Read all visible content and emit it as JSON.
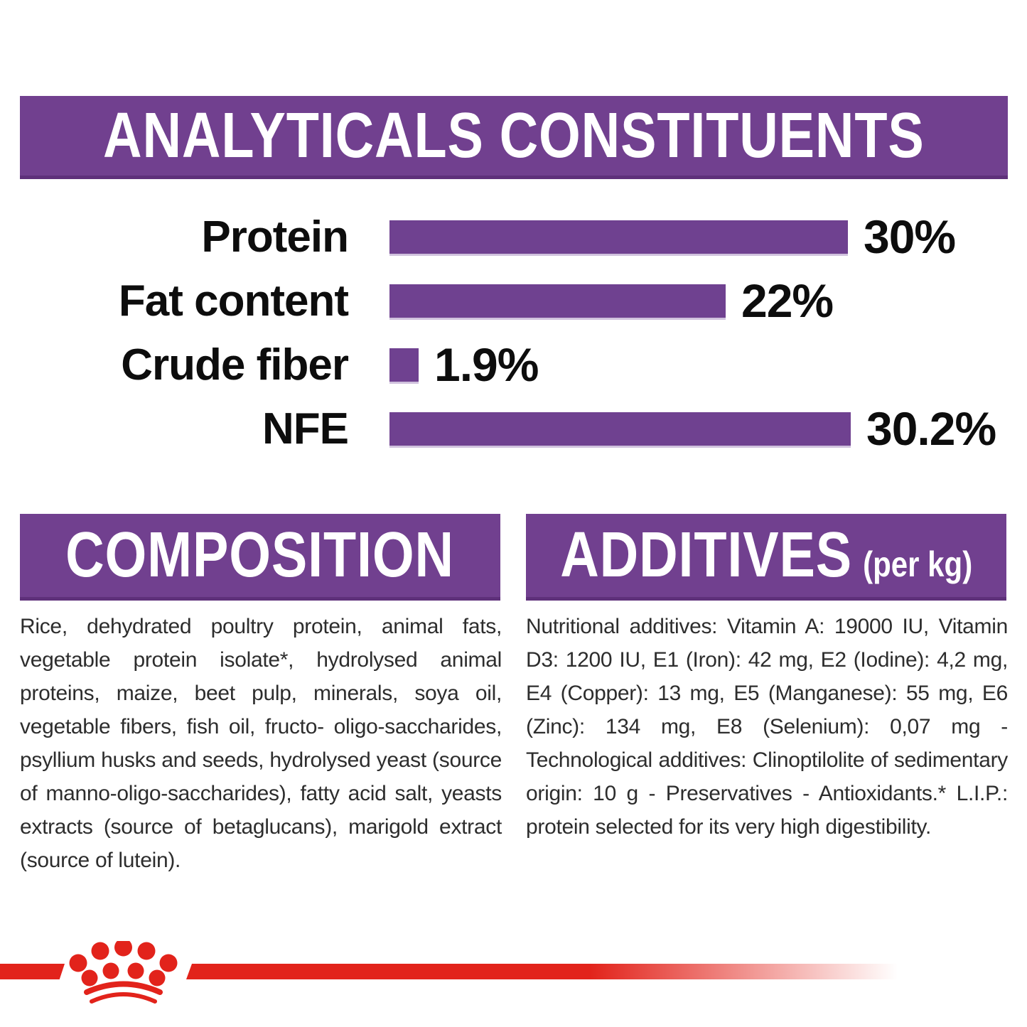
{
  "header": {
    "title": "ANALYTICALS CONSTITUENTS"
  },
  "chart_data": {
    "type": "bar",
    "orientation": "horizontal",
    "title": "ANALYTICALS CONSTITUENTS",
    "categories": [
      "Protein",
      "Fat content",
      "Crude fiber",
      "NFE"
    ],
    "values": [
      30,
      22,
      1.9,
      30.2
    ],
    "value_labels": [
      "30%",
      "22%",
      "1.9%",
      "30.2%"
    ],
    "unit": "%",
    "xlim": [
      0,
      31
    ],
    "grid": false,
    "legend": false,
    "bar_color": "#6F4190"
  },
  "composition": {
    "title": "COMPOSITION",
    "body": "Rice, dehydrated poultry protein, animal fats, vegetable protein isolate*, hydrolysed animal proteins, maize, beet pulp, minerals, soya oil, vegetable fibers, fish oil, fructo- oligo-saccharides, psyllium husks and seeds, hydrolysed yeast (source of manno-oligo-saccharides), fatty acid salt, yeasts extracts (source of betaglucans), marigold extract (source of lutein)."
  },
  "additives": {
    "title": "ADDITIVES",
    "unit": "(per kg)",
    "body": "Nutritional additives: Vitamin A: 19000 IU, Vitamin D3: 1200 IU, E1 (Iron): 42 mg, E2 (Iodine): 4,2 mg, E4 (Copper): 13 mg, E5 (Manganese): 55 mg, E6 (Zinc): 134 mg, E8 (Selenium): 0,07 mg - Technological additives: Clinoptilolite of sedimentary origin: 10 g - Preservatives - Antioxidants.* L.I.P.: protein selected for its very high digestibility."
  },
  "footer": {
    "logo": "royal-canin-crown"
  },
  "colors": {
    "banner_purple": "#71408F",
    "bar_purple": "#6F4190",
    "brand_red": "#E2231B",
    "body_text": "#2D2D2D",
    "background": "#FFFFFF"
  }
}
